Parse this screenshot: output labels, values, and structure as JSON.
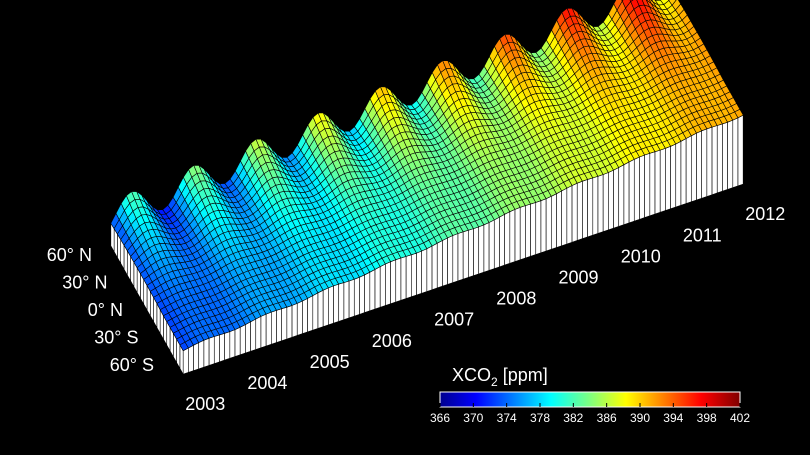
{
  "chart_data": {
    "type": "surface",
    "x_axis": {
      "tick_labels": [
        "2003",
        "2004",
        "2005",
        "2006",
        "2007",
        "2008",
        "2009",
        "2010",
        "2011",
        "2012"
      ],
      "range": [
        2003,
        2012
      ]
    },
    "y_axis": {
      "tick_labels": [
        "60° N",
        "30° N",
        "0° N",
        "30° S",
        "60° S"
      ],
      "tick_values": [
        60,
        30,
        0,
        -30,
        -60
      ],
      "range": [
        -70,
        70
      ]
    },
    "z_axis": {
      "quantity": "XCO2",
      "range": [
        366,
        402
      ]
    },
    "trend": {
      "start_year": 2003,
      "start_value_ppm": 373,
      "end_value_ppm": 392,
      "north_seasonal_amplitude_ppm": 6,
      "north_offset_ppm": 2.5,
      "south_seasonal_amplitude_ppm": 0.5
    },
    "colorbar": {
      "title_main": "XCO",
      "title_sub": "2",
      "title_unit": "[ppm]",
      "tick_labels": [
        "366",
        "370",
        "374",
        "378",
        "382",
        "386",
        "390",
        "394",
        "398",
        "402"
      ],
      "tick_values": [
        366,
        370,
        374,
        378,
        382,
        386,
        390,
        394,
        398,
        402
      ],
      "colormap": "jet"
    },
    "background": "#000000",
    "mesh_color": "#000000"
  }
}
